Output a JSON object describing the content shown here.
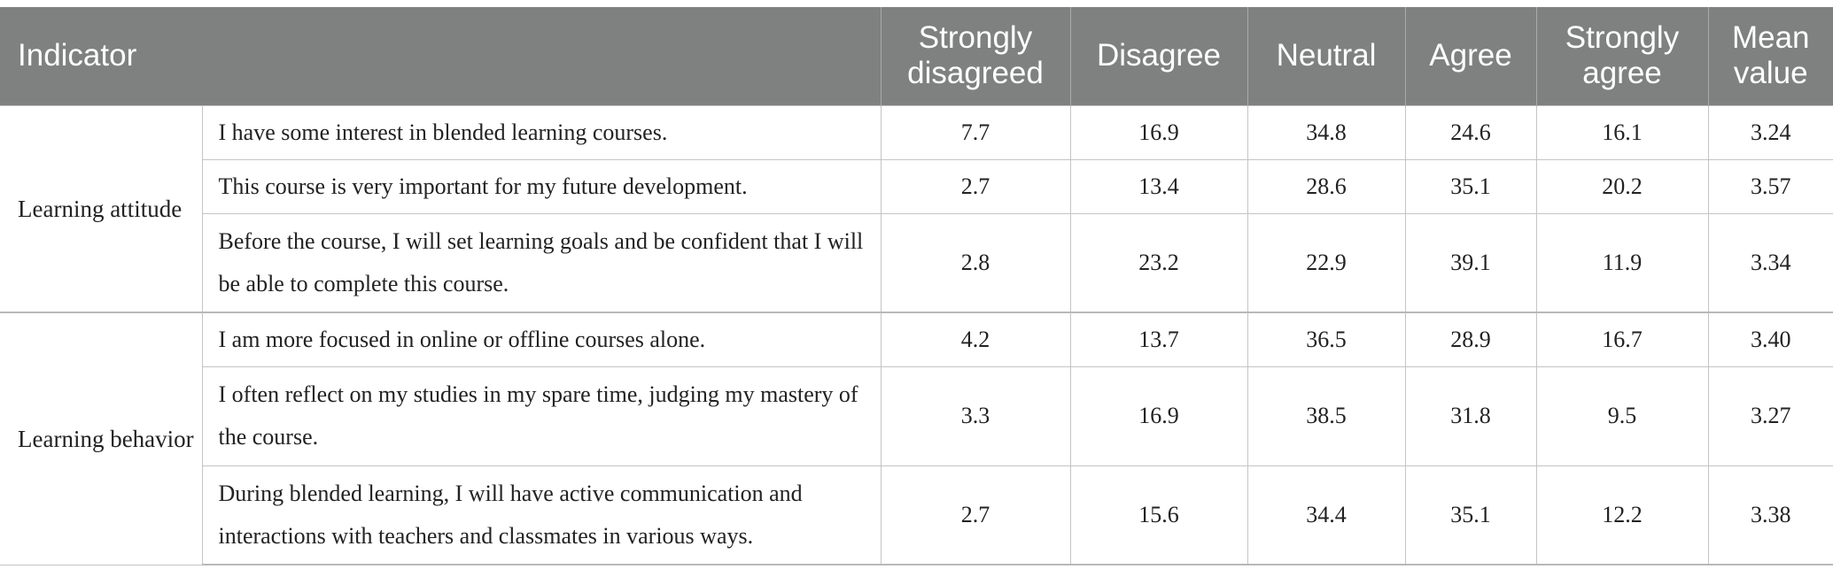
{
  "table": {
    "headers": {
      "indicator": "Indicator",
      "strongly_disagreed": "Strongly disagreed",
      "disagree": "Disagree",
      "neutral": "Neutral",
      "agree": "Agree",
      "strongly_agree": "Strongly agree",
      "mean_value": "Mean value"
    },
    "groups": [
      {
        "label": "Learning attitude",
        "rows": [
          {
            "item": "I have some interest in blended learning courses.",
            "strongly_disagreed": "7.7",
            "disagree": "16.9",
            "neutral": "34.8",
            "agree": "24.6",
            "strongly_agree": "16.1",
            "mean_value": "3.24"
          },
          {
            "item": "This course is very important for my future development.",
            "strongly_disagreed": "2.7",
            "disagree": "13.4",
            "neutral": "28.6",
            "agree": "35.1",
            "strongly_agree": "20.2",
            "mean_value": "3.57"
          },
          {
            "item": "Before the course, I will set learning goals and be confident that I will be able to complete this course.",
            "strongly_disagreed": "2.8",
            "disagree": "23.2",
            "neutral": "22.9",
            "agree": "39.1",
            "strongly_agree": "11.9",
            "mean_value": "3.34"
          }
        ]
      },
      {
        "label": "Learning behavior",
        "rows": [
          {
            "item": "I am more focused in online or offline courses alone.",
            "strongly_disagreed": "4.2",
            "disagree": "13.7",
            "neutral": "36.5",
            "agree": "28.9",
            "strongly_agree": "16.7",
            "mean_value": "3.40"
          },
          {
            "item": "I often reflect on my studies in my spare time, judging my mastery of the course.",
            "strongly_disagreed": "3.3",
            "disagree": "16.9",
            "neutral": "38.5",
            "agree": "31.8",
            "strongly_agree": "9.5",
            "mean_value": "3.27"
          },
          {
            "item": "During blended learning, I will have active communication and interactions with teachers and classmates in various ways.",
            "strongly_disagreed": "2.7",
            "disagree": "15.6",
            "neutral": "34.4",
            "agree": "35.1",
            "strongly_agree": "12.2",
            "mean_value": "3.38"
          }
        ]
      }
    ]
  }
}
